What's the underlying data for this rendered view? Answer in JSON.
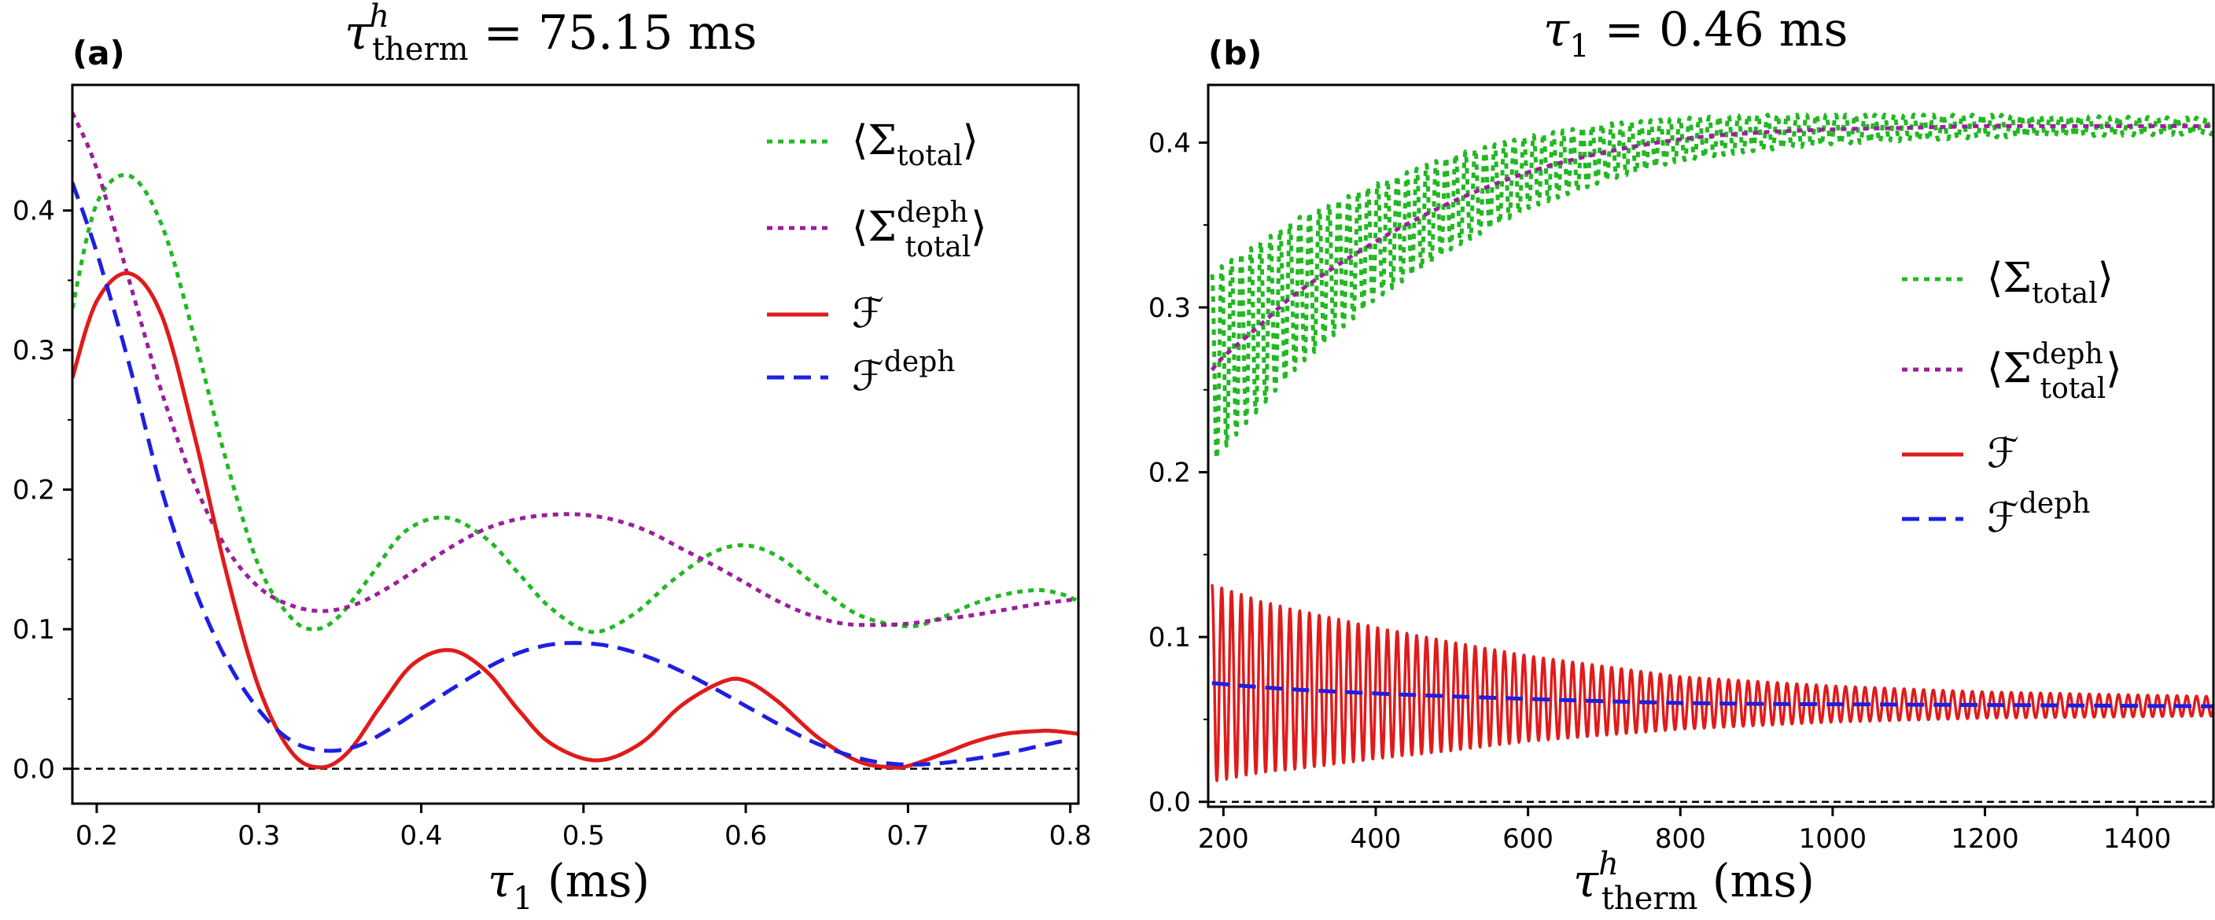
{
  "chart_data": [
    {
      "panel": "(a)",
      "type": "line",
      "title": "τ",
      "title_sup": "h",
      "title_sub": "therm",
      "title_rest": " = 75.15 ms",
      "xlabel": "τ",
      "xlabel_sub": "1",
      "xlabel_rest": " (ms)",
      "ylabel": "",
      "xlim": [
        0.185,
        0.805
      ],
      "ylim": [
        -0.025,
        0.49
      ],
      "xticks": [
        "0.2",
        "0.3",
        "0.4",
        "0.5",
        "0.6",
        "0.7",
        "0.8"
      ],
      "yticks": [
        "0.0",
        "0.1",
        "0.2",
        "0.3",
        "0.4"
      ],
      "ytick_values": [
        0.0,
        0.1,
        0.2,
        0.3,
        0.4
      ],
      "xtick_values": [
        0.2,
        0.3,
        0.4,
        0.5,
        0.6,
        0.7,
        0.8
      ],
      "reference_line": 0.0,
      "legend": {
        "placement": "top-right",
        "entries": [
          {
            "symbol": "⟨Σ",
            "sub": "total",
            "sup": "",
            "close": "⟩",
            "color": "#22b822",
            "style": "dotted"
          },
          {
            "symbol": "⟨Σ",
            "sub": "total",
            "sup": "deph",
            "close": "⟩",
            "color": "#9b1f9b",
            "style": "dotted"
          },
          {
            "symbol": "ℱ",
            "sub": "",
            "sup": "",
            "close": "",
            "color": "#e01b1b",
            "style": "solid"
          },
          {
            "symbol": "ℱ",
            "sub": "",
            "sup": "deph",
            "close": "",
            "color": "#1f1fe0",
            "style": "dashed"
          }
        ]
      },
      "series": [
        {
          "name": "Σ_total",
          "color": "#22b822",
          "style": "dotted",
          "x": [
            0.185,
            0.2,
            0.22,
            0.24,
            0.26,
            0.28,
            0.3,
            0.32,
            0.335,
            0.35,
            0.37,
            0.39,
            0.415,
            0.44,
            0.46,
            0.48,
            0.505,
            0.53,
            0.555,
            0.58,
            0.6,
            0.62,
            0.645,
            0.67,
            0.7,
            0.72,
            0.74,
            0.76,
            0.78,
            0.795,
            0.805
          ],
          "y": [
            0.33,
            0.405,
            0.425,
            0.39,
            0.31,
            0.22,
            0.145,
            0.108,
            0.1,
            0.11,
            0.14,
            0.17,
            0.18,
            0.165,
            0.14,
            0.115,
            0.098,
            0.11,
            0.135,
            0.155,
            0.16,
            0.152,
            0.13,
            0.11,
            0.102,
            0.108,
            0.118,
            0.125,
            0.128,
            0.125,
            0.12
          ]
        },
        {
          "name": "Σ_total^deph",
          "color": "#9b1f9b",
          "style": "dotted",
          "x": [
            0.185,
            0.2,
            0.22,
            0.24,
            0.26,
            0.28,
            0.3,
            0.32,
            0.34,
            0.36,
            0.38,
            0.4,
            0.42,
            0.44,
            0.46,
            0.48,
            0.5,
            0.52,
            0.54,
            0.56,
            0.58,
            0.6,
            0.62,
            0.64,
            0.66,
            0.68,
            0.7,
            0.72,
            0.74,
            0.76,
            0.78,
            0.8,
            0.805
          ],
          "y": [
            0.47,
            0.43,
            0.35,
            0.27,
            0.205,
            0.158,
            0.13,
            0.117,
            0.113,
            0.118,
            0.13,
            0.145,
            0.16,
            0.172,
            0.179,
            0.182,
            0.182,
            0.178,
            0.17,
            0.158,
            0.146,
            0.133,
            0.12,
            0.11,
            0.104,
            0.103,
            0.104,
            0.107,
            0.11,
            0.114,
            0.118,
            0.121,
            0.122
          ]
        },
        {
          "name": "F",
          "color": "#e01b1b",
          "style": "solid",
          "x": [
            0.185,
            0.2,
            0.22,
            0.24,
            0.26,
            0.28,
            0.3,
            0.32,
            0.338,
            0.355,
            0.375,
            0.395,
            0.418,
            0.44,
            0.46,
            0.48,
            0.508,
            0.535,
            0.56,
            0.585,
            0.6,
            0.62,
            0.645,
            0.67,
            0.69,
            0.7,
            0.72,
            0.74,
            0.76,
            0.78,
            0.79,
            0.805
          ],
          "y": [
            0.28,
            0.335,
            0.355,
            0.325,
            0.24,
            0.14,
            0.058,
            0.012,
            0.001,
            0.012,
            0.045,
            0.075,
            0.085,
            0.07,
            0.042,
            0.018,
            0.006,
            0.018,
            0.045,
            0.062,
            0.063,
            0.048,
            0.022,
            0.005,
            0.001,
            0.002,
            0.01,
            0.019,
            0.025,
            0.027,
            0.027,
            0.025
          ]
        },
        {
          "name": "F^deph",
          "color": "#1f1fe0",
          "style": "dashed",
          "x": [
            0.185,
            0.2,
            0.22,
            0.24,
            0.26,
            0.28,
            0.3,
            0.32,
            0.34,
            0.36,
            0.38,
            0.4,
            0.42,
            0.44,
            0.46,
            0.48,
            0.5,
            0.52,
            0.54,
            0.56,
            0.58,
            0.6,
            0.62,
            0.64,
            0.66,
            0.68,
            0.7,
            0.72,
            0.74,
            0.76,
            0.78,
            0.8
          ],
          "y": [
            0.42,
            0.37,
            0.29,
            0.2,
            0.13,
            0.078,
            0.042,
            0.02,
            0.013,
            0.016,
            0.028,
            0.043,
            0.058,
            0.072,
            0.083,
            0.089,
            0.09,
            0.087,
            0.08,
            0.07,
            0.058,
            0.045,
            0.032,
            0.02,
            0.011,
            0.005,
            0.003,
            0.004,
            0.007,
            0.011,
            0.016,
            0.021
          ]
        }
      ]
    },
    {
      "panel": "(b)",
      "type": "line",
      "title": "τ",
      "title_sub": "1",
      "title_rest": " = 0.46 ms",
      "xlabel": "τ",
      "xlabel_sup": "h",
      "xlabel_sub": "therm",
      "xlabel_rest": " (ms)",
      "ylabel": "",
      "xlim": [
        180,
        1500
      ],
      "ylim": [
        -0.003,
        0.435
      ],
      "xticks": [
        "200",
        "400",
        "600",
        "800",
        "1000",
        "1200",
        "1400"
      ],
      "yticks": [
        "0.0",
        "0.1",
        "0.2",
        "0.3",
        "0.4"
      ],
      "ytick_values": [
        0.0,
        0.1,
        0.2,
        0.3,
        0.4
      ],
      "xtick_values": [
        200,
        400,
        600,
        800,
        1000,
        1200,
        1400
      ],
      "reference_line": 0.0,
      "legend": {
        "placement": "center-right",
        "entries": [
          {
            "symbol": "⟨Σ",
            "sub": "total",
            "sup": "",
            "close": "⟩",
            "color": "#22b822",
            "style": "dotted"
          },
          {
            "symbol": "⟨Σ",
            "sub": "total",
            "sup": "deph",
            "close": "⟩",
            "color": "#9b1f9b",
            "style": "dotted"
          },
          {
            "symbol": "ℱ",
            "sub": "",
            "sup": "",
            "close": "",
            "color": "#e01b1b",
            "style": "solid"
          },
          {
            "symbol": "ℱ",
            "sub": "",
            "sup": "deph",
            "close": "",
            "color": "#1f1fe0",
            "style": "dashed"
          }
        ]
      },
      "series": [
        {
          "name": "Σ_total",
          "color": "#22b822",
          "style": "dotted-oscillating",
          "x_start": 185,
          "x_end": 1500,
          "period_ms": 12.8,
          "mean": {
            "x": [
              185,
              200,
              250,
              300,
              400,
              500,
              600,
              700,
              800,
              900,
              1000,
              1100,
              1200,
              1300,
              1400,
              1500
            ],
            "y": [
              0.262,
              0.27,
              0.29,
              0.31,
              0.34,
              0.364,
              0.382,
              0.394,
              0.402,
              0.406,
              0.408,
              0.409,
              0.41,
              0.41,
              0.41,
              0.41
            ]
          },
          "amplitude": {
            "x": [
              185,
              250,
              400,
              600,
              800,
              1000,
              1200,
              1500
            ],
            "y": [
              0.058,
              0.05,
              0.035,
              0.022,
              0.013,
              0.009,
              0.007,
              0.005
            ]
          }
        },
        {
          "name": "Σ_total^deph",
          "color": "#9b1f9b",
          "style": "dotted",
          "x": [
            185,
            200,
            250,
            300,
            400,
            500,
            600,
            700,
            800,
            900,
            1000,
            1100,
            1200,
            1300,
            1400,
            1500
          ],
          "y": [
            0.262,
            0.27,
            0.29,
            0.31,
            0.34,
            0.364,
            0.382,
            0.394,
            0.402,
            0.406,
            0.408,
            0.409,
            0.41,
            0.41,
            0.41,
            0.41
          ]
        },
        {
          "name": "F",
          "color": "#e01b1b",
          "style": "solid-oscillating",
          "x_start": 185,
          "x_end": 1500,
          "period_ms": 12.8,
          "mean": {
            "x": [
              185,
              300,
              500,
              800,
              1100,
              1500
            ],
            "y": [
              0.072,
              0.068,
              0.064,
              0.06,
              0.059,
              0.058
            ]
          },
          "amplitude": {
            "x": [
              185,
              250,
              400,
              600,
              800,
              1000,
              1200,
              1500
            ],
            "y": [
              0.06,
              0.052,
              0.04,
              0.026,
              0.016,
              0.011,
              0.008,
              0.006
            ]
          }
        },
        {
          "name": "F^deph",
          "color": "#1f1fe0",
          "style": "dashed",
          "x": [
            185,
            300,
            500,
            800,
            1100,
            1500
          ],
          "y": [
            0.072,
            0.068,
            0.064,
            0.06,
            0.059,
            0.058
          ]
        }
      ]
    }
  ]
}
